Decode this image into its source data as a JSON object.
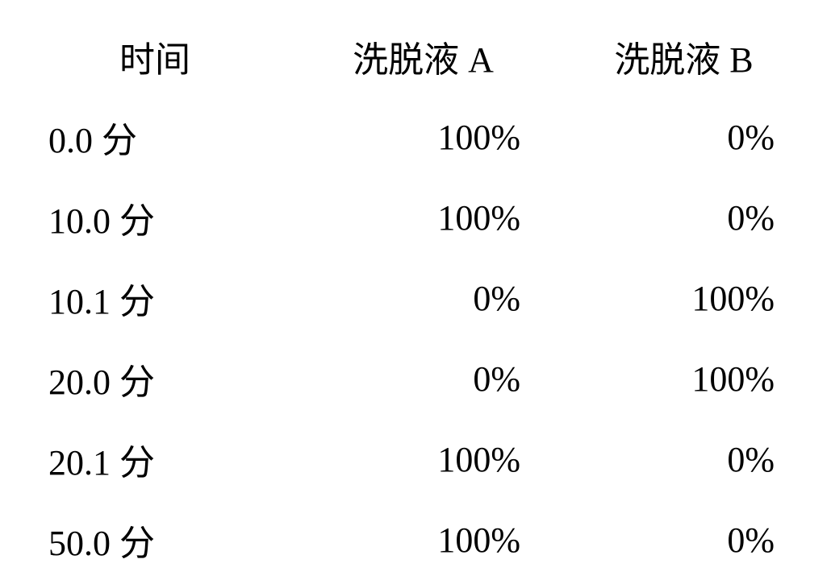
{
  "table": {
    "type": "table",
    "headers": {
      "time": "时间",
      "eluent_a": "洗脱液 A",
      "eluent_b": "洗脱液 B"
    },
    "rows": [
      {
        "time": "0.0 分",
        "eluent_a": "100%",
        "eluent_b": "0%"
      },
      {
        "time": "10.0 分",
        "eluent_a": "100%",
        "eluent_b": "0%"
      },
      {
        "time": "10.1 分",
        "eluent_a": "0%",
        "eluent_b": "100%"
      },
      {
        "time": "20.0 分",
        "eluent_a": "0%",
        "eluent_b": "100%"
      },
      {
        "time": "20.1 分",
        "eluent_a": "100%",
        "eluent_b": "0%"
      },
      {
        "time": "50.0 分",
        "eluent_a": "100%",
        "eluent_b": "0%"
      }
    ],
    "styling": {
      "background_color": "#ffffff",
      "text_color": "#000000",
      "font_size": 44,
      "font_family": "SimSun",
      "row_padding": 18
    }
  }
}
